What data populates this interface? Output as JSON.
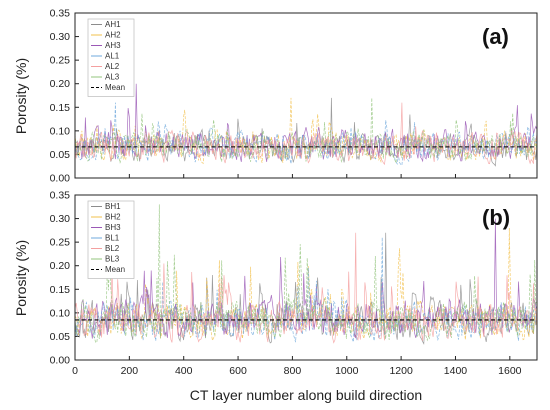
{
  "chart_data": [
    {
      "type": "line",
      "panel_label": "(a)",
      "ylabel": "Porosity (%)",
      "xlabel": "",
      "xlim": [
        0,
        1700
      ],
      "ylim": [
        0,
        0.35
      ],
      "yticks": [
        "0.00",
        "0.05",
        "0.10",
        "0.15",
        "0.20",
        "0.25",
        "0.30",
        "0.35"
      ],
      "legend_position": "top-left",
      "series": [
        {
          "name": "AH1",
          "color": "#8c8c8c",
          "mean_approx": 0.065,
          "max_approx": 0.17
        },
        {
          "name": "AH2",
          "color": "#f2c14e",
          "mean_approx": 0.068,
          "max_approx": 0.17
        },
        {
          "name": "AH3",
          "color": "#9b59b6",
          "mean_approx": 0.07,
          "max_approx": 0.2
        },
        {
          "name": "AL1",
          "color": "#6fa8dc",
          "mean_approx": 0.065,
          "max_approx": 0.16
        },
        {
          "name": "AL2",
          "color": "#f4a0a0",
          "mean_approx": 0.065,
          "max_approx": 0.16
        },
        {
          "name": "AL3",
          "color": "#93c47d",
          "mean_approx": 0.065,
          "max_approx": 0.17
        },
        {
          "name": "Mean",
          "color": "#000000",
          "style": "dashed",
          "value": 0.066
        }
      ]
    },
    {
      "type": "line",
      "panel_label": "(b)",
      "ylabel": "Porosity (%)",
      "xlabel": "CT layer number along build direction",
      "xlim": [
        0,
        1700
      ],
      "ylim": [
        0,
        0.35
      ],
      "xticks": [
        "0",
        "200",
        "400",
        "600",
        "800",
        "1000",
        "1200",
        "1400",
        "1600"
      ],
      "yticks": [
        "0.00",
        "0.05",
        "0.10",
        "0.15",
        "0.20",
        "0.25",
        "0.30",
        "0.35"
      ],
      "legend_position": "top-left",
      "series": [
        {
          "name": "BH1",
          "color": "#8c8c8c",
          "mean_approx": 0.085,
          "max_approx": 0.27
        },
        {
          "name": "BH2",
          "color": "#f2c14e",
          "mean_approx": 0.085,
          "max_approx": 0.28
        },
        {
          "name": "BH3",
          "color": "#9b59b6",
          "mean_approx": 0.09,
          "max_approx": 0.3
        },
        {
          "name": "BL1",
          "color": "#6fa8dc",
          "mean_approx": 0.08,
          "max_approx": 0.26
        },
        {
          "name": "BL2",
          "color": "#f4a0a0",
          "mean_approx": 0.08,
          "max_approx": 0.27
        },
        {
          "name": "BL3",
          "color": "#93c47d",
          "mean_approx": 0.085,
          "max_approx": 0.33
        },
        {
          "name": "Mean",
          "color": "#000000",
          "style": "dashed",
          "value": 0.085
        }
      ]
    }
  ]
}
